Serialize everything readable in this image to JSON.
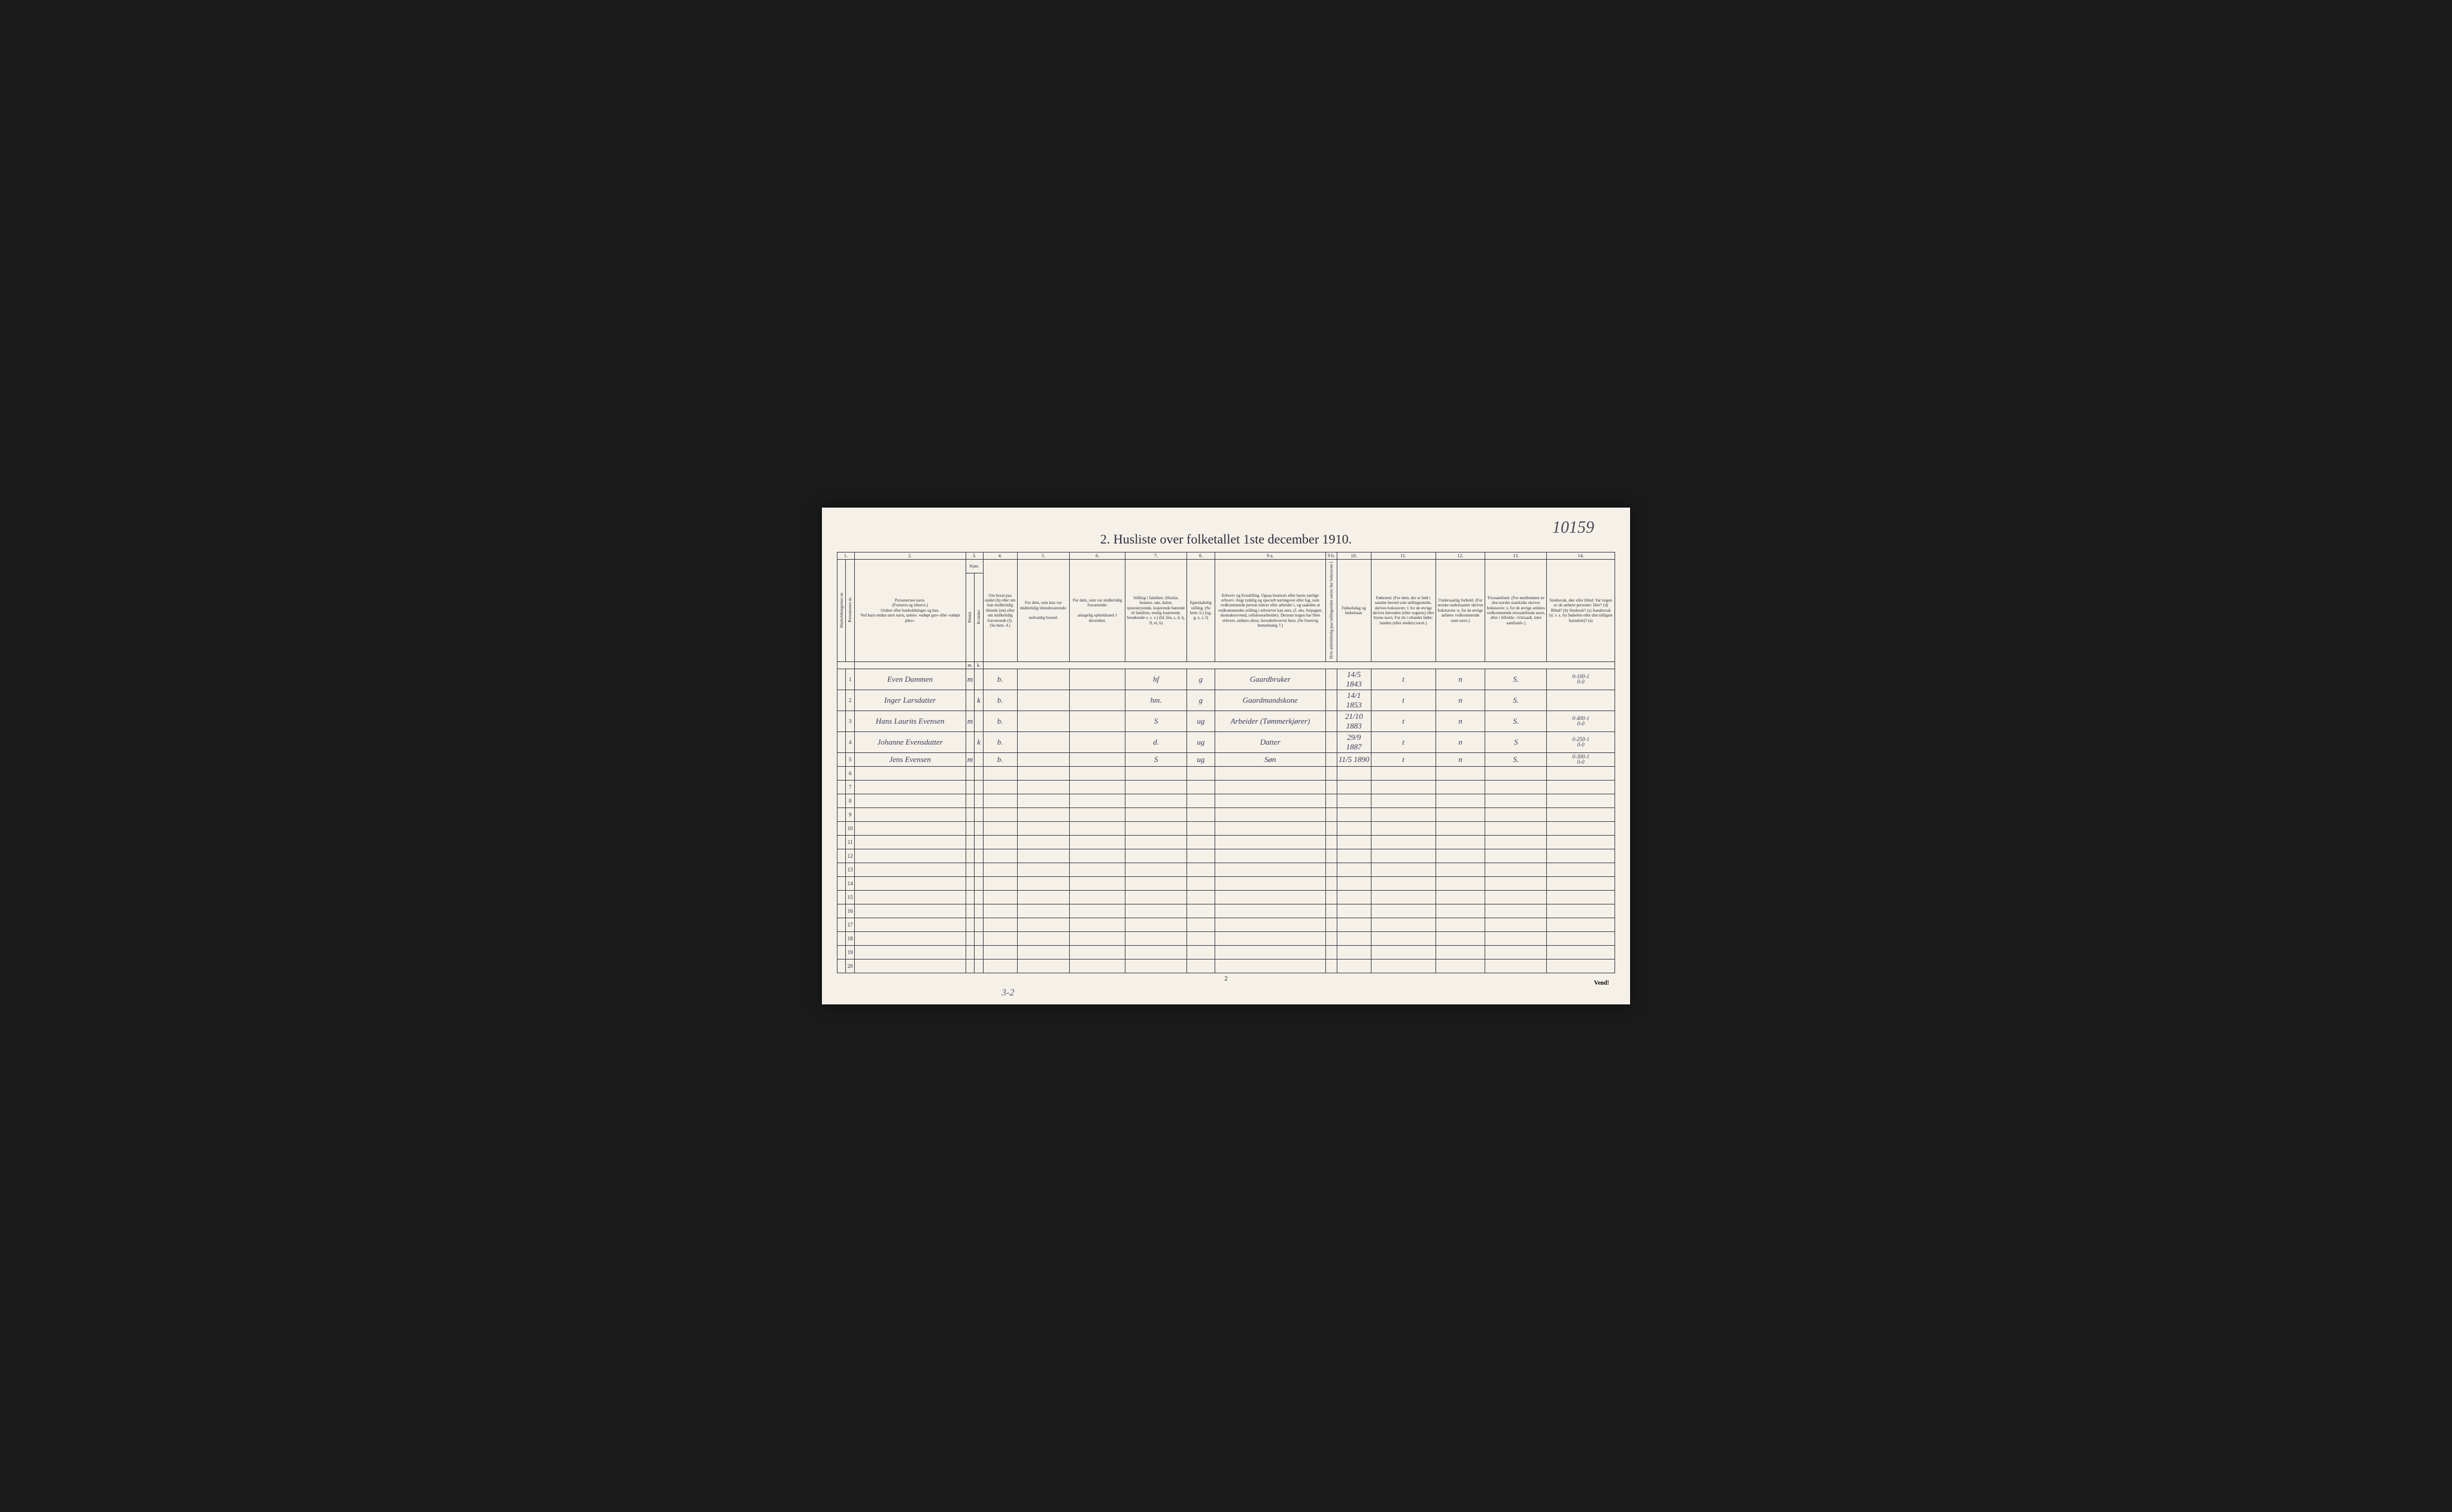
{
  "handwritten_id": "10159",
  "title": "2. Husliste over folketallet 1ste december 1910.",
  "column_numbers": [
    "1.",
    "2.",
    "3.",
    "4.",
    "5.",
    "6.",
    "7.",
    "8.",
    "9 a.",
    "9 b.",
    "10.",
    "11.",
    "12.",
    "13.",
    "14."
  ],
  "headers": {
    "col1a": "Husholdningernes nr.",
    "col1b": "Personernes nr.",
    "col2": "Personernes navn.\n(Fornavn og tilnavn.)\nOrdnet efter husholdninger og hus.\nVed barn endnu uten navn, sættes: «udøpt gut» eller «udøpt pike».",
    "col3": "Kjøn.",
    "col3a": "Mænd.",
    "col3b": "Kvinder.",
    "col4": "Om bosat paa stedet (b) eller om kun midlertidig tilstede (mt) eller om midlertidig fraværende (f). (Se bem. 4.)",
    "col5": "For dem, som kun var midlertidig tilstedeværende:\n\nsedvanlig bosted.",
    "col6": "For dem, som var midlertidig fraværende:\n\nantagelig opholdssted 1 december.",
    "col7": "Stilling i familien.\n(Husfar, husmor, søn, datter, tjenestetyende, losjerende hørende til familien, enslig losjerende, besøkende o. s. v.)\n(hf, hm, s, d, tj, fl, el, b)",
    "col8": "Egteskabelig stilling.\n(Se bem. 6.)\n(ug, g, e, s, f)",
    "col9a": "Erhverv og livsstilling.\nOgsaa husmors eller barns særlige erhverv.\nAngi tydelig og specielt næringsvei eller fag, som vedkommende person utøver eller arbeider i, og saaledes at vedkommendes stilling i erhvervet kan sees, (f. eks. forpagter, skomakersvend, cellulosearbeider). Dersom nogen har flere erhverv, anføres disse, hovederhvervet først.\n(Se forøvrig bemerkning 7.)",
    "col9b": "Hvis arbeidsledig paa tællingstiden sættes her bokstaven l.",
    "col10": "Fødselsdag og fødselsaar.",
    "col11": "Fødested.\n(For dem, der er født i samme herred som tællingsstedet, skrives bokstaven: t; for de øvrige skrives herredets (eller sognets) eller byens navn. For de i utlandet fødte: landets (eller stedets) navn.)",
    "col12": "Undersaatlig forhold.\n(For norske undersaatter skrives bokstaven: n; for de øvrige anføres vedkommende stats navn.)",
    "col13": "Trossamfund.\n(For medlemmer av den norske statskirke skrives bokstaven: s; for de øvrige anføres vedkommende trossamfunds navn, eller i tilfælde: «Uttraadt, intet samfund».)",
    "col14": "Sindssvak, døv eller blind.\nVar nogen av de anførte personer:\nDøv? (d)\nBlind? (b)\nSindssyk? (s)\nAandssvak (d. v. s. fra fødselen eller den tidligste barndom)? (a)"
  },
  "subheader": {
    "m": "m.",
    "k": "k."
  },
  "rows": [
    {
      "num": "1",
      "name": "Even Dammen",
      "m": "m",
      "k": "",
      "res": "b.",
      "temp": "",
      "away": "",
      "fam": "hf",
      "mar": "g",
      "occ": "Gaardbruker",
      "led": "",
      "birth": "14/5 1843",
      "place": "t",
      "nat": "n",
      "rel": "S.",
      "dis": "0-100-1\n0-0"
    },
    {
      "num": "2",
      "name": "Inger Larsdatter",
      "m": "",
      "k": "k",
      "res": "b.",
      "temp": "",
      "away": "",
      "fam": "hm.",
      "mar": "g",
      "occ": "Gaardmandskone",
      "led": "",
      "birth": "14/1 1853",
      "place": "t",
      "nat": "n",
      "rel": "S.",
      "dis": ""
    },
    {
      "num": "3",
      "name": "Hans Laurits Evensen",
      "m": "m",
      "k": "",
      "res": "b.",
      "temp": "",
      "away": "",
      "fam": "S",
      "mar": "ug",
      "occ": "Arbeider (Tømmerkjører)",
      "led": "",
      "birth": "21/10 1883",
      "place": "t",
      "nat": "n",
      "rel": "S.",
      "dis": "0-400-1\n0-0"
    },
    {
      "num": "4",
      "name": "Johanne Evensdatter",
      "m": "",
      "k": "k",
      "res": "b.",
      "temp": "",
      "away": "",
      "fam": "d.",
      "mar": "ug",
      "occ": "Datter",
      "led": "",
      "birth": "29/9 1887",
      "place": "t",
      "nat": "n",
      "rel": "S",
      "dis": "0-250-1\n0-0"
    },
    {
      "num": "5",
      "name": "Jens Evensen",
      "m": "m",
      "k": "",
      "res": "b.",
      "temp": "",
      "away": "",
      "fam": "S",
      "mar": "ug",
      "occ": "Søn",
      "led": "",
      "birth": "11/5 1890",
      "place": "t",
      "nat": "n",
      "rel": "S.",
      "dis": "0-300-1\n0-0"
    }
  ],
  "empty_rows": [
    "6",
    "7",
    "8",
    "9",
    "10",
    "11",
    "12",
    "13",
    "14",
    "15",
    "16",
    "17",
    "18",
    "19",
    "20"
  ],
  "footer_page": "2",
  "vend": "Vend!",
  "bottom_note": "3-2",
  "colors": {
    "page_bg": "#f5f1e8",
    "ink": "#2a2a3a",
    "handwriting": "#3a3a5a",
    "border": "#3a3a4a"
  },
  "col_widths": {
    "c1a": 14,
    "c1b": 14,
    "c2": 180,
    "c3a": 14,
    "c3b": 14,
    "c4": 55,
    "c5": 85,
    "c6": 90,
    "c7": 100,
    "c8": 45,
    "c9a": 180,
    "c9b": 18,
    "c10": 55,
    "c11": 105,
    "c12": 80,
    "c13": 100,
    "c14": 110
  }
}
